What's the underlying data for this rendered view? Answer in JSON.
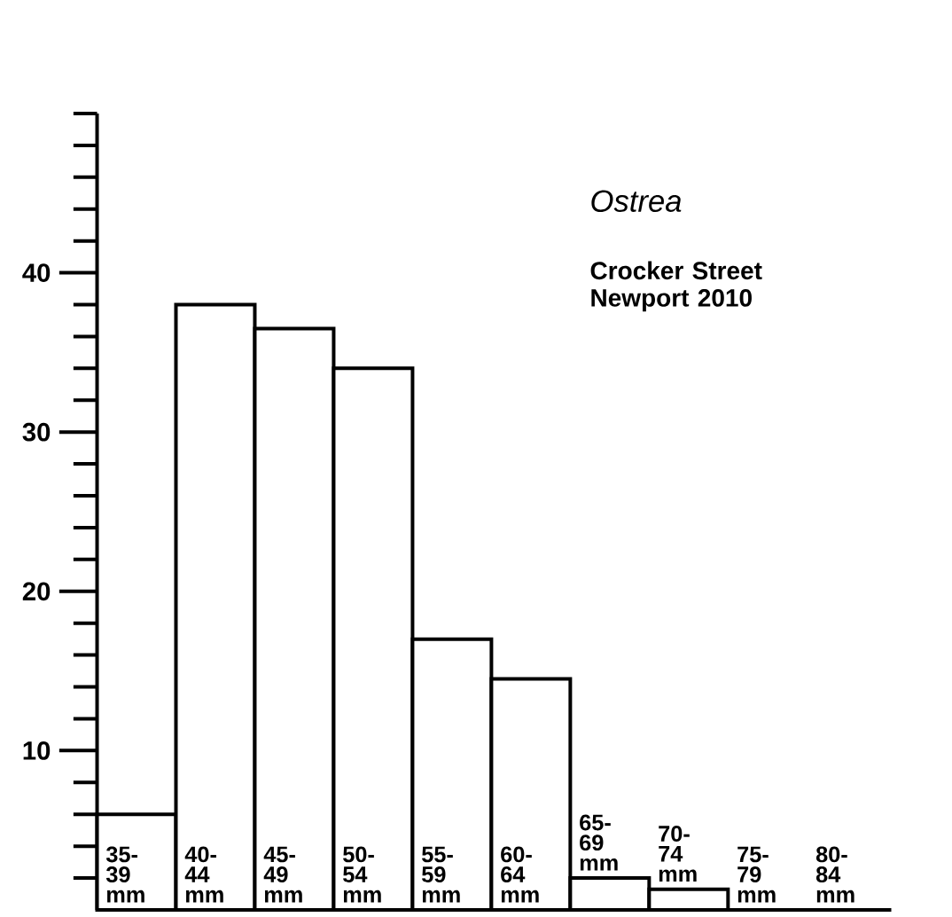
{
  "chart_data": {
    "type": "bar",
    "title": "Ostrea",
    "subtitle": "Crocker Street Newport 2010",
    "categories": [
      "35- 39 mm",
      "40- 44 mm",
      "45- 49 mm",
      "50- 54 mm",
      "55- 59 mm",
      "60- 64 mm",
      "65- 69 mm",
      "70- 74 mm",
      "75- 79 mm",
      "80- 84 mm"
    ],
    "values": [
      6,
      38,
      36.5,
      34,
      17,
      14.5,
      2,
      1.3,
      0,
      0
    ],
    "color": "#ffffff",
    "ylim": [
      0,
      50
    ],
    "yticks": [
      {
        "value": 2,
        "label": null
      },
      {
        "value": 4,
        "label": null
      },
      {
        "value": 6,
        "label": null
      },
      {
        "value": 8,
        "label": null
      },
      10,
      {
        "value": 12,
        "label": null
      },
      {
        "value": 14,
        "label": null
      },
      {
        "value": 16,
        "label": null
      },
      {
        "value": 18,
        "label": null
      },
      20,
      {
        "value": 22,
        "label": null
      },
      {
        "value": 24,
        "label": null
      },
      {
        "value": 26,
        "label": null
      },
      {
        "value": 28,
        "label": null
      },
      30,
      {
        "value": 32,
        "label": null
      },
      {
        "value": 34,
        "label": null
      },
      {
        "value": 36,
        "label": null
      },
      {
        "value": 38,
        "label": null
      },
      40,
      {
        "value": 42,
        "label": null
      },
      {
        "value": 44,
        "label": null
      },
      {
        "value": 46,
        "label": null
      },
      {
        "value": 48,
        "label": null
      },
      {
        "value": 50,
        "label": null
      }
    ],
    "grid": false
  }
}
